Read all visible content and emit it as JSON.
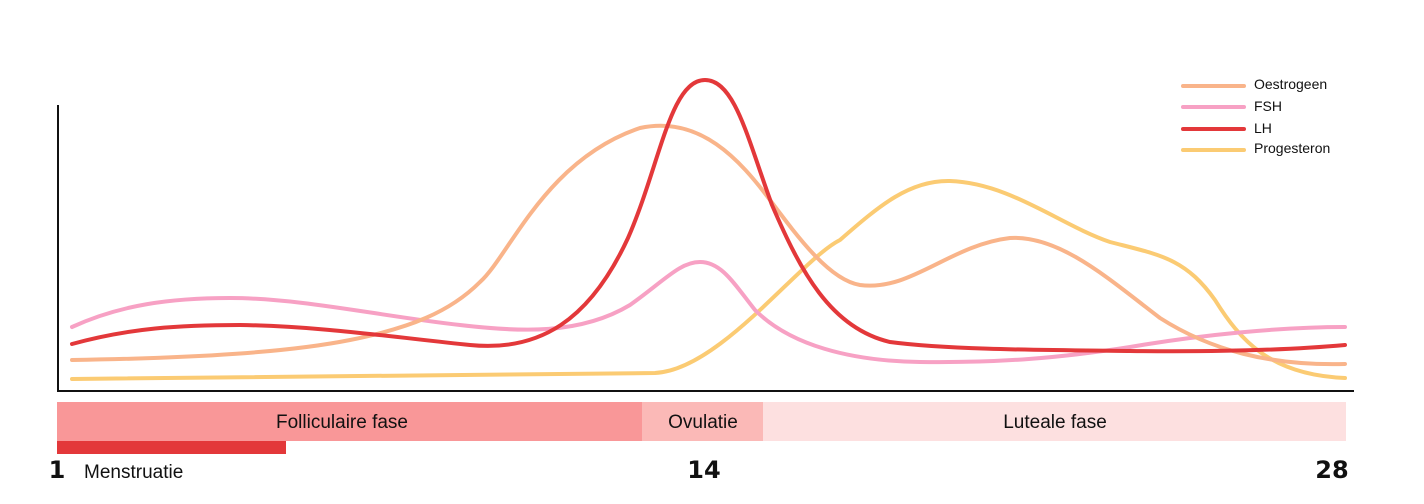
{
  "legend": [
    {
      "id": "oestrogeen",
      "label": "Oestrogeen",
      "color": "#F9B48A"
    },
    {
      "id": "fsh",
      "label": "FSH",
      "color": "#F7A1C4"
    },
    {
      "id": "lh",
      "label": "LH",
      "color": "#E3383A"
    },
    {
      "id": "progesteron",
      "label": "Progesteron",
      "color": "#FBCB73"
    }
  ],
  "phases": [
    {
      "label": "Folliculaire fase",
      "color": "#F99798"
    },
    {
      "label": "Ovulatie",
      "color": "#FBB9B7"
    },
    {
      "label": "Luteale fase",
      "color": "#FDE0E0"
    }
  ],
  "menstruation": {
    "label": "Menstruatie",
    "color": "#E3383A"
  },
  "days": {
    "start": "1",
    "ovulation": "14",
    "end": "28"
  },
  "colors": {
    "axis": "#111111",
    "background": "#ffffff"
  }
}
